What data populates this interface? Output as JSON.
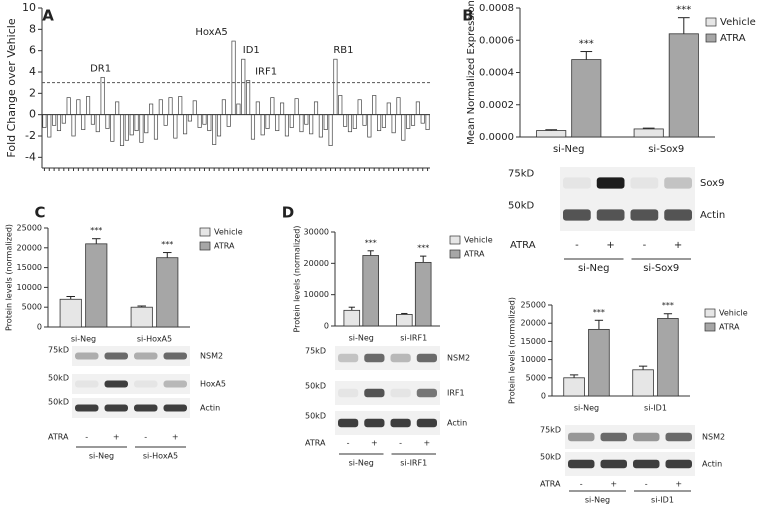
{
  "chart_data": [
    {
      "type": "bar",
      "panel": "A",
      "ylabel": "Fold Change over  Vehicle",
      "values": [
        -1.2,
        -2.1,
        -1.0,
        -1.5,
        -0.8,
        1.6,
        -2.0,
        1.4,
        -1.4,
        1.7,
        -0.9,
        -1.6,
        3.5,
        -1.3,
        -2.5,
        1.2,
        -2.9,
        -2.4,
        -1.9,
        -1.5,
        -2.6,
        -1.7,
        1.0,
        -2.3,
        1.4,
        -1.0,
        1.6,
        -2.2,
        1.7,
        -1.8,
        -0.6,
        1.3,
        -1.2,
        -0.9,
        -1.5,
        -2.8,
        -2.0,
        1.4,
        -1.1,
        6.9,
        1.0,
        5.2,
        3.2,
        -2.3,
        1.2,
        -1.9,
        -1.3,
        1.6,
        -1.5,
        1.1,
        -2.0,
        -1.2,
        1.5,
        -1.6,
        -0.9,
        -1.8,
        1.2,
        -2.1,
        -1.4,
        -2.9,
        5.2,
        1.8,
        -1.1,
        -1.6,
        -1.3,
        1.4,
        -1.0,
        -2.1,
        1.8,
        -1.5,
        -1.2,
        1.1,
        -1.7,
        1.6,
        -2.4,
        -1.3,
        -1.0,
        1.2,
        -0.8,
        -1.4
      ],
      "color": "#ffffff",
      "reference_line": 3,
      "annotations": [
        "DR1",
        "HoxA5",
        "ID1",
        "IRF1",
        "RB1"
      ],
      "ylim": [
        -5,
        10
      ],
      "yticks": [
        -4,
        -2,
        0,
        2,
        4,
        6,
        8,
        10
      ]
    },
    {
      "type": "bar",
      "panel": "B",
      "ylabel": "Mean Normalized Expression",
      "categories": [
        "si-Neg",
        "si-Sox9"
      ],
      "series": [
        {
          "name": "Vehicle",
          "color": "#e6e6e6",
          "values": [
            4e-05,
            5e-05
          ],
          "errors": [
            5e-06,
            5e-06
          ]
        },
        {
          "name": "ATRA",
          "color": "#a6a6a6",
          "values": [
            0.00048,
            0.00064
          ],
          "errors": [
            5e-05,
            0.0001
          ],
          "annotations": [
            "***",
            "***"
          ]
        }
      ],
      "ylim": [
        0,
        0.0008
      ],
      "yticks": [
        {
          "value": 0,
          "label": "0.0000"
        },
        {
          "value": 0.0002,
          "label": "0.0002"
        },
        {
          "value": 0.0004,
          "label": "0.0004"
        },
        {
          "value": 0.0006,
          "label": "0.0006"
        },
        {
          "value": 0.0008,
          "label": "0.0008"
        }
      ],
      "blot": {
        "markers": [
          "75kD",
          "50kD"
        ],
        "bands": [
          "Sox9",
          "Actin"
        ],
        "treatment": "ATRA",
        "signs": [
          "-",
          "+",
          "-",
          "+"
        ]
      }
    },
    {
      "type": "bar",
      "panel": "C",
      "ylabel": "Protein levels (normalized)",
      "categories": [
        "si-Neg",
        "si-HoxA5"
      ],
      "series": [
        {
          "name": "Vehicle",
          "color": "#e6e6e6",
          "values": [
            7000,
            5000
          ],
          "errors": [
            700,
            300
          ]
        },
        {
          "name": "ATRA",
          "color": "#a6a6a6",
          "values": [
            21000,
            17500
          ],
          "errors": [
            1300,
            1300
          ],
          "annotations": [
            "***",
            "***"
          ]
        }
      ],
      "ylim": [
        0,
        25000
      ],
      "yticks": [
        0,
        5000,
        10000,
        15000,
        20000,
        25000
      ],
      "blot": {
        "markers": [
          "75kD",
          "50kD",
          "50kD"
        ],
        "bands": [
          "NSM2",
          "HoxA5",
          "Actin"
        ],
        "treatment": "ATRA",
        "signs": [
          "-",
          "+",
          "-",
          "+"
        ]
      }
    },
    {
      "type": "bar",
      "panel": "D",
      "ylabel": "Protein levels (normalized)",
      "categories": [
        "si-Neg",
        "si-IRF1"
      ],
      "series": [
        {
          "name": "Vehicle",
          "color": "#e6e6e6",
          "values": [
            5000,
            3700
          ],
          "errors": [
            1000,
            300
          ]
        },
        {
          "name": "ATRA",
          "color": "#a6a6a6",
          "values": [
            22500,
            20300
          ],
          "errors": [
            1500,
            2000
          ],
          "annotations": [
            "***",
            "***"
          ]
        }
      ],
      "ylim": [
        0,
        30000
      ],
      "yticks": [
        0,
        10000,
        20000,
        30000
      ],
      "blot": {
        "markers": [
          "75kD",
          "50kD",
          "50kD"
        ],
        "bands": [
          "NSM2",
          "IRF1",
          "Actin"
        ],
        "treatment": "ATRA",
        "signs": [
          "-",
          "+",
          "-",
          "+"
        ]
      }
    },
    {
      "type": "bar",
      "ylabel": "Protein levels (normalized)",
      "categories": [
        "si-Neg",
        "si-ID1"
      ],
      "series": [
        {
          "name": "Vehicle",
          "color": "#e6e6e6",
          "values": [
            5000,
            7200
          ],
          "errors": [
            800,
            1000
          ]
        },
        {
          "name": "ATRA",
          "color": "#a6a6a6",
          "values": [
            18300,
            21300
          ],
          "errors": [
            2500,
            1300
          ],
          "annotations": [
            "***",
            "***"
          ]
        }
      ],
      "ylim": [
        0,
        25000
      ],
      "yticks": [
        0,
        5000,
        10000,
        15000,
        20000,
        25000
      ],
      "blot": {
        "markers": [
          "75kD",
          "50kD"
        ],
        "bands": [
          "NSM2",
          "Actin"
        ],
        "treatment": "ATRA",
        "signs": [
          "-",
          "+",
          "-",
          "+"
        ]
      }
    }
  ]
}
